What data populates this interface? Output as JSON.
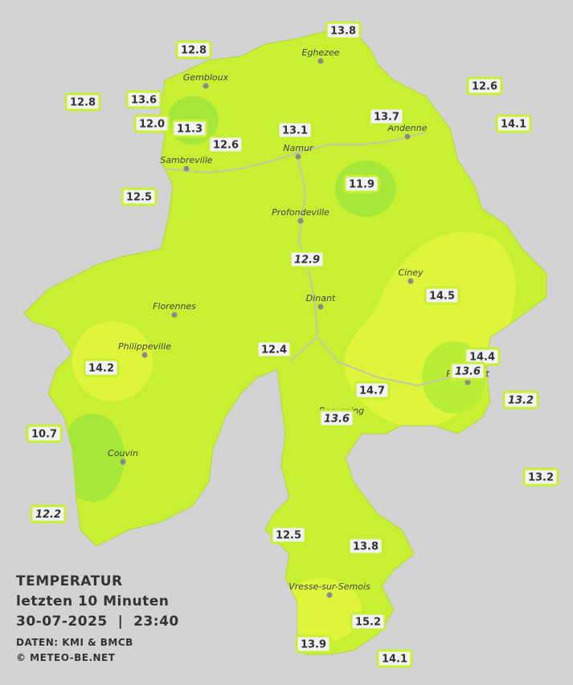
{
  "title": {
    "lines": [
      "TEMPERATUR",
      "letzten 10 Minuten",
      "30-07-2025  |  23:40"
    ],
    "credits": [
      "DATEN: KMI & BMCB",
      "© METEO-BE.NET"
    ]
  },
  "cities": [
    "Eghezee",
    "Gembloux",
    "Andenne",
    "Namur",
    "Sambreville",
    "Profondeville",
    "Ciney",
    "Dinant",
    "Florennes",
    "Philippeville",
    "Rochefort",
    "Beauraing",
    "Couvin",
    "Vresse-sur-Semois"
  ],
  "stations": [
    "13.8",
    "12.8",
    "12.6",
    "12.8",
    "13.6",
    "13.7",
    "14.1",
    "12.0",
    "11.3",
    "13.1",
    "12.6",
    "11.9",
    "12.5",
    "12.9",
    "14.5",
    "12.4",
    "14.4",
    "14.2",
    "13.6",
    "14.7",
    "13.2",
    "13.6",
    "10.7",
    "13.2",
    "12.2",
    "12.5",
    "13.8",
    "15.2",
    "13.9",
    "14.1"
  ]
}
